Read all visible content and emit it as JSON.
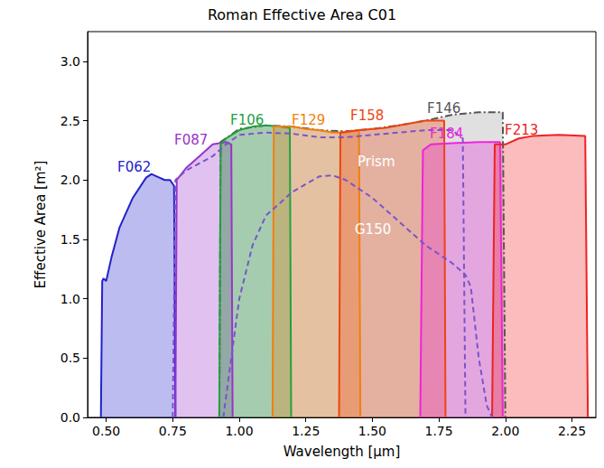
{
  "chart_data": {
    "type": "area",
    "title": "Roman Effective Area C01",
    "x_label": "Wavelength [μm]",
    "y_label": "Effective Area [m²]",
    "xlim": [
      0.43,
      2.34
    ],
    "ylim": [
      0,
      3.25
    ],
    "xticks": [
      {
        "value": 0.5,
        "label": "0.50"
      },
      {
        "value": 0.75,
        "label": "0.75"
      },
      {
        "value": 1.0,
        "label": "1.00"
      },
      {
        "value": 1.25,
        "label": "1.25"
      },
      {
        "value": 1.5,
        "label": "1.50"
      },
      {
        "value": 1.75,
        "label": "1.75"
      },
      {
        "value": 2.0,
        "label": "2.00"
      },
      {
        "value": 2.25,
        "label": "2.25"
      }
    ],
    "yticks": [
      {
        "value": 0,
        "label": "0.0"
      },
      0.5,
      {
        "value": 1,
        "label": "1.0"
      },
      1.5,
      {
        "value": 2,
        "label": "2.0"
      },
      2.5,
      {
        "value": 3,
        "label": "3.0"
      }
    ],
    "grid": false,
    "series": [
      {
        "name": "F062",
        "color": "#2222cc",
        "type": "area",
        "line_style": "solid",
        "x": [
          0.48,
          0.485,
          0.49,
          0.5,
          0.52,
          0.55,
          0.6,
          0.65,
          0.67,
          0.7,
          0.72,
          0.74,
          0.755,
          0.76
        ],
        "values": [
          0,
          1.15,
          1.17,
          1.15,
          1.35,
          1.6,
          1.85,
          2.02,
          2.05,
          2.02,
          2.0,
          2.0,
          1.95,
          0
        ]
      },
      {
        "name": "F087",
        "color": "#9933cc",
        "type": "area",
        "line_style": "solid",
        "x": [
          0.76,
          0.765,
          0.8,
          0.85,
          0.9,
          0.95,
          0.97,
          0.975
        ],
        "values": [
          0,
          2.0,
          2.1,
          2.2,
          2.3,
          2.32,
          2.3,
          0
        ]
      },
      {
        "name": "F146",
        "color": "#555555",
        "type": "area",
        "line_style": "dashdot",
        "x": [
          0.925,
          0.93,
          1.0,
          1.1,
          1.2,
          1.3,
          1.4,
          1.5,
          1.6,
          1.7,
          1.8,
          1.9,
          1.99,
          2.0
        ],
        "values": [
          0,
          2.32,
          2.43,
          2.46,
          2.45,
          2.42,
          2.41,
          2.43,
          2.46,
          2.5,
          2.55,
          2.57,
          2.57,
          0
        ]
      },
      {
        "name": "F106",
        "color": "#22a040",
        "type": "area",
        "line_style": "solid",
        "x": [
          0.925,
          0.93,
          0.95,
          1.0,
          1.05,
          1.1,
          1.15,
          1.19,
          1.195
        ],
        "values": [
          0,
          2.3,
          2.35,
          2.42,
          2.45,
          2.46,
          2.45,
          2.44,
          0
        ]
      },
      {
        "name": "F129",
        "color": "#f07f10",
        "type": "area",
        "line_style": "solid",
        "x": [
          1.125,
          1.13,
          1.2,
          1.25,
          1.3,
          1.35,
          1.4,
          1.45,
          1.455
        ],
        "values": [
          0,
          2.45,
          2.45,
          2.43,
          2.42,
          2.4,
          2.4,
          2.42,
          0
        ]
      },
      {
        "name": "F158",
        "color": "#ee4411",
        "type": "area",
        "line_style": "solid",
        "x": [
          1.375,
          1.38,
          1.45,
          1.5,
          1.55,
          1.6,
          1.7,
          1.77,
          1.775
        ],
        "values": [
          0,
          2.4,
          2.42,
          2.43,
          2.44,
          2.46,
          2.5,
          2.5,
          0
        ]
      },
      {
        "name": "F184",
        "color": "#ee22dd",
        "type": "area",
        "line_style": "solid",
        "x": [
          1.68,
          1.69,
          1.72,
          1.8,
          1.9,
          1.98,
          1.99
        ],
        "values": [
          0,
          2.25,
          2.3,
          2.31,
          2.32,
          2.32,
          0
        ]
      },
      {
        "name": "F213",
        "color": "#ee2222",
        "type": "area",
        "line_style": "solid",
        "x": [
          1.95,
          1.96,
          2.0,
          2.05,
          2.1,
          2.2,
          2.3,
          2.31
        ],
        "values": [
          0,
          2.3,
          2.3,
          2.35,
          2.37,
          2.38,
          2.37,
          0
        ]
      },
      {
        "name": "Prism",
        "color": "#7755cc",
        "type": "line",
        "line_style": "dashed",
        "x": [
          0.75,
          0.76,
          0.8,
          0.9,
          0.95,
          1.0,
          1.1,
          1.2,
          1.3,
          1.4,
          1.5,
          1.6,
          1.7,
          1.8,
          1.84,
          1.85
        ],
        "values": [
          0,
          2.0,
          2.08,
          2.2,
          2.3,
          2.38,
          2.4,
          2.39,
          2.36,
          2.36,
          2.38,
          2.4,
          2.42,
          2.42,
          2.35,
          0
        ]
      },
      {
        "name": "G150",
        "color": "#7755cc",
        "type": "line",
        "line_style": "dashed",
        "x": [
          0.94,
          1.0,
          1.05,
          1.1,
          1.2,
          1.3,
          1.35,
          1.4,
          1.5,
          1.6,
          1.7,
          1.8,
          1.85,
          1.87,
          1.9,
          1.93,
          1.95
        ],
        "values": [
          0,
          1.0,
          1.45,
          1.7,
          1.9,
          2.03,
          2.04,
          2.0,
          1.85,
          1.65,
          1.45,
          1.3,
          1.2,
          1.1,
          0.5,
          0.1,
          0
        ]
      }
    ]
  }
}
